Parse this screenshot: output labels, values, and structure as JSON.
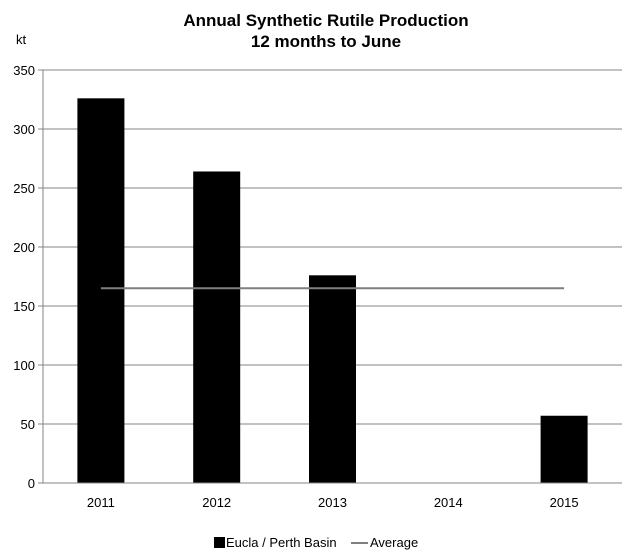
{
  "chart_data": {
    "type": "bar",
    "title_line1": "Annual Synthetic Rutile Production",
    "title_line2": "12 months to June",
    "ylabel": "kt",
    "categories": [
      "2011",
      "2012",
      "2013",
      "2014",
      "2015"
    ],
    "series": [
      {
        "name": "Eucla / Perth Basin",
        "type": "bar",
        "values": [
          326,
          264,
          176,
          0,
          57
        ],
        "color": "#000000"
      },
      {
        "name": "Average",
        "type": "line",
        "value": 165,
        "color": "#7f7f7f"
      }
    ],
    "ylim": [
      0,
      350
    ],
    "yticks": [
      "0",
      "50",
      "100",
      "150",
      "200",
      "250",
      "300",
      "350"
    ],
    "grid": true,
    "legend_position": "bottom"
  }
}
